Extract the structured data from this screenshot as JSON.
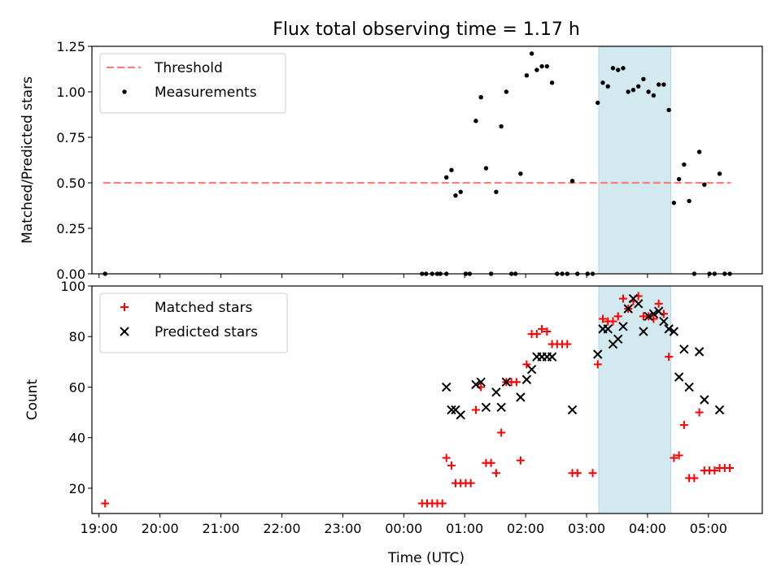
{
  "chart_data": [
    {
      "type": "scatter",
      "title": "Flux total observing time = 1.17 h",
      "xlabel": "",
      "ylabel": "Matched/Predicted stars",
      "xlim": [
        "18:53",
        "05:53"
      ],
      "ylim": [
        0,
        1.25
      ],
      "yticks": [
        "0.00",
        "0.25",
        "0.50",
        "0.75",
        "1.00",
        "1.25"
      ],
      "shaded_interval": [
        "03:12",
        "04:23"
      ],
      "shaded_color": "#d3e9f0",
      "legend": {
        "location": "top-left",
        "entries": [
          {
            "label": "Threshold",
            "marker": "dashed-line",
            "color": "#ff7f7f"
          },
          {
            "label": "Measurements",
            "marker": "dot",
            "color": "#000000"
          }
        ]
      },
      "threshold": {
        "value": 0.5,
        "from": "19:04",
        "to": "05:22",
        "color": "#ff7f7f"
      },
      "series": [
        {
          "name": "Measurements",
          "marker": "dot",
          "color": "#000000",
          "points": [
            [
              "19:06",
              0.0
            ],
            [
              "00:18",
              0.0
            ],
            [
              "00:22",
              0.0
            ],
            [
              "00:28",
              0.0
            ],
            [
              "00:33",
              0.0
            ],
            [
              "00:36",
              0.0
            ],
            [
              "00:42",
              0.0
            ],
            [
              "00:42",
              0.53
            ],
            [
              "00:47",
              0.57
            ],
            [
              "00:51",
              0.43
            ],
            [
              "00:56",
              0.45
            ],
            [
              "01:01",
              0.0
            ],
            [
              "01:05",
              0.0
            ],
            [
              "01:11",
              0.84
            ],
            [
              "01:16",
              0.97
            ],
            [
              "01:21",
              0.58
            ],
            [
              "01:26",
              0.0
            ],
            [
              "01:31",
              0.45
            ],
            [
              "01:36",
              0.81
            ],
            [
              "01:41",
              1.0
            ],
            [
              "01:46",
              0.0
            ],
            [
              "01:50",
              0.0
            ],
            [
              "01:55",
              0.55
            ],
            [
              "02:01",
              1.09
            ],
            [
              "02:06",
              1.21
            ],
            [
              "02:11",
              1.12
            ],
            [
              "02:16",
              1.14
            ],
            [
              "02:21",
              1.14
            ],
            [
              "02:26",
              1.05
            ],
            [
              "02:31",
              0.0
            ],
            [
              "02:36",
              0.0
            ],
            [
              "02:41",
              0.0
            ],
            [
              "02:46",
              0.51
            ],
            [
              "02:51",
              0.0
            ],
            [
              "03:01",
              0.0
            ],
            [
              "03:06",
              0.0
            ],
            [
              "03:11",
              0.94
            ],
            [
              "03:16",
              1.05
            ],
            [
              "03:21",
              1.03
            ],
            [
              "03:26",
              1.13
            ],
            [
              "03:31",
              1.12
            ],
            [
              "03:36",
              1.13
            ],
            [
              "03:41",
              1.0
            ],
            [
              "03:46",
              1.01
            ],
            [
              "03:51",
              1.03
            ],
            [
              "03:56",
              1.07
            ],
            [
              "04:01",
              1.0
            ],
            [
              "04:06",
              0.98
            ],
            [
              "04:11",
              1.04
            ],
            [
              "04:16",
              1.04
            ],
            [
              "04:21",
              0.9
            ],
            [
              "04:26",
              0.39
            ],
            [
              "04:31",
              0.52
            ],
            [
              "04:36",
              0.6
            ],
            [
              "04:41",
              0.4
            ],
            [
              "04:46",
              0.0
            ],
            [
              "04:51",
              0.67
            ],
            [
              "04:56",
              0.49
            ],
            [
              "05:01",
              0.0
            ],
            [
              "05:06",
              0.0
            ],
            [
              "05:11",
              0.55
            ],
            [
              "05:16",
              0.0
            ],
            [
              "05:21",
              0.0
            ]
          ]
        }
      ]
    },
    {
      "type": "scatter",
      "xlabel": "Time (UTC)",
      "ylabel": "Count",
      "xlim": [
        "18:53",
        "05:53"
      ],
      "ylim": [
        10,
        100
      ],
      "yticks": [
        "20",
        "40",
        "60",
        "80",
        "100"
      ],
      "xticks": [
        "19:00",
        "20:00",
        "21:00",
        "22:00",
        "23:00",
        "00:00",
        "01:00",
        "02:00",
        "03:00",
        "04:00",
        "05:00"
      ],
      "shaded_interval": [
        "03:12",
        "04:23"
      ],
      "shaded_color": "#d3e9f0",
      "legend": {
        "location": "top-left",
        "entries": [
          {
            "label": "Matched stars",
            "marker": "plus",
            "color": "#ff0000"
          },
          {
            "label": "Predicted stars",
            "marker": "x",
            "color": "#000000"
          }
        ]
      },
      "series": [
        {
          "name": "Matched stars",
          "marker": "plus",
          "color": "#ff0000",
          "points": [
            [
              "19:06",
              14
            ],
            [
              "00:18",
              14
            ],
            [
              "00:23",
              14
            ],
            [
              "00:28",
              14
            ],
            [
              "00:33",
              14
            ],
            [
              "00:38",
              14
            ],
            [
              "00:42",
              32
            ],
            [
              "00:47",
              29
            ],
            [
              "00:51",
              22
            ],
            [
              "00:56",
              22
            ],
            [
              "01:01",
              22
            ],
            [
              "01:06",
              22
            ],
            [
              "01:11",
              51
            ],
            [
              "01:16",
              60
            ],
            [
              "01:21",
              30
            ],
            [
              "01:26",
              30
            ],
            [
              "01:31",
              26
            ],
            [
              "01:36",
              42
            ],
            [
              "01:41",
              62
            ],
            [
              "01:46",
              62
            ],
            [
              "01:51",
              62
            ],
            [
              "01:55",
              31
            ],
            [
              "02:01",
              69
            ],
            [
              "02:06",
              81
            ],
            [
              "02:11",
              81
            ],
            [
              "02:16",
              83
            ],
            [
              "02:21",
              82
            ],
            [
              "02:26",
              77
            ],
            [
              "02:31",
              77
            ],
            [
              "02:36",
              77
            ],
            [
              "02:41",
              77
            ],
            [
              "02:46",
              26
            ],
            [
              "02:51",
              26
            ],
            [
              "03:06",
              26
            ],
            [
              "03:11",
              69
            ],
            [
              "03:16",
              87
            ],
            [
              "03:21",
              86
            ],
            [
              "03:26",
              86
            ],
            [
              "03:31",
              88
            ],
            [
              "03:36",
              95
            ],
            [
              "03:41",
              91
            ],
            [
              "03:46",
              94
            ],
            [
              "03:51",
              96
            ],
            [
              "03:56",
              88
            ],
            [
              "04:01",
              88
            ],
            [
              "04:06",
              87
            ],
            [
              "04:11",
              93
            ],
            [
              "04:16",
              89
            ],
            [
              "04:21",
              72
            ],
            [
              "04:26",
              32
            ],
            [
              "04:31",
              33
            ],
            [
              "04:36",
              45
            ],
            [
              "04:41",
              24
            ],
            [
              "04:46",
              24
            ],
            [
              "04:51",
              50
            ],
            [
              "04:56",
              27
            ],
            [
              "05:01",
              27
            ],
            [
              "05:06",
              27
            ],
            [
              "05:11",
              28
            ],
            [
              "05:16",
              28
            ],
            [
              "05:21",
              28
            ]
          ]
        },
        {
          "name": "Predicted stars",
          "marker": "x",
          "color": "#000000",
          "points": [
            [
              "00:42",
              60
            ],
            [
              "00:47",
              51
            ],
            [
              "00:51",
              51
            ],
            [
              "00:56",
              49
            ],
            [
              "01:11",
              61
            ],
            [
              "01:16",
              62
            ],
            [
              "01:21",
              52
            ],
            [
              "01:31",
              58
            ],
            [
              "01:36",
              52
            ],
            [
              "01:41",
              62
            ],
            [
              "01:55",
              56
            ],
            [
              "02:01",
              63
            ],
            [
              "02:06",
              67
            ],
            [
              "02:11",
              72
            ],
            [
              "02:16",
              72
            ],
            [
              "02:21",
              72
            ],
            [
              "02:26",
              72
            ],
            [
              "02:46",
              51
            ],
            [
              "03:11",
              73
            ],
            [
              "03:16",
              83
            ],
            [
              "03:21",
              83
            ],
            [
              "03:26",
              77
            ],
            [
              "03:31",
              79
            ],
            [
              "03:36",
              84
            ],
            [
              "03:41",
              91
            ],
            [
              "03:46",
              95
            ],
            [
              "03:51",
              93
            ],
            [
              "03:56",
              82
            ],
            [
              "04:01",
              88
            ],
            [
              "04:06",
              89
            ],
            [
              "04:11",
              90
            ],
            [
              "04:16",
              86
            ],
            [
              "04:21",
              83
            ],
            [
              "04:26",
              82
            ],
            [
              "04:31",
              64
            ],
            [
              "04:36",
              75
            ],
            [
              "04:41",
              60
            ],
            [
              "04:51",
              74
            ],
            [
              "04:56",
              55
            ],
            [
              "05:11",
              51
            ]
          ]
        }
      ]
    }
  ]
}
